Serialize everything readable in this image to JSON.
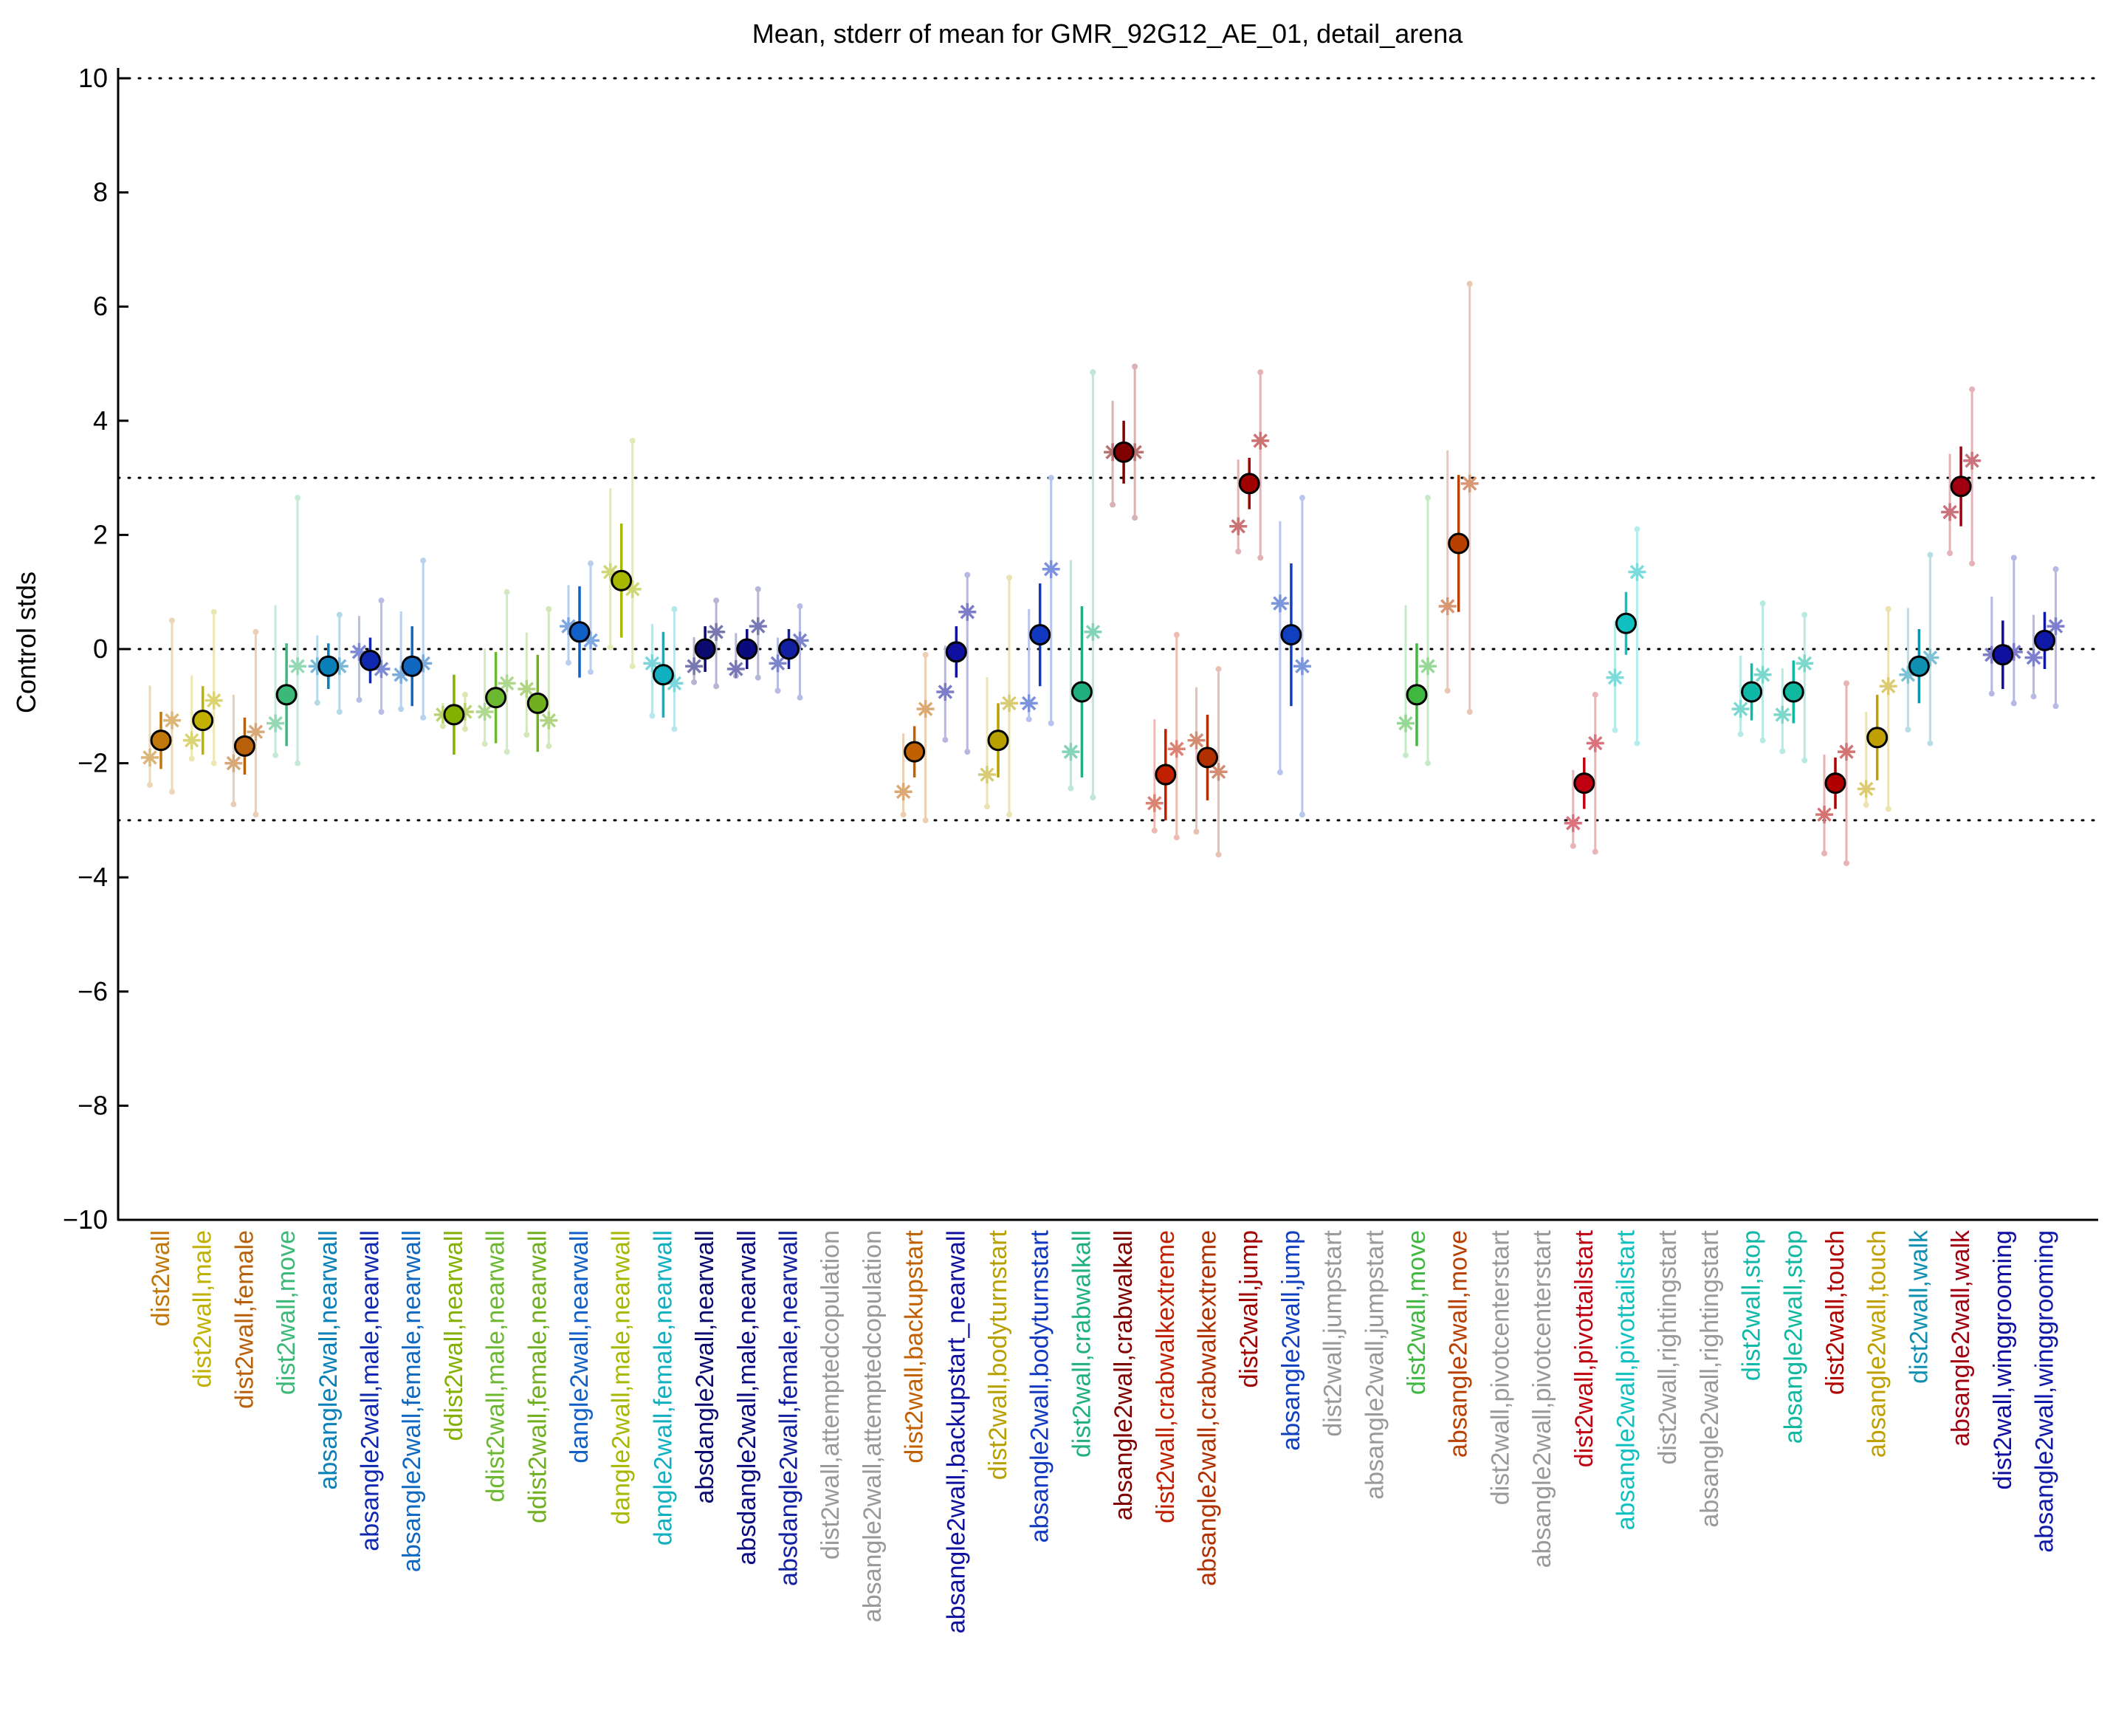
{
  "chart_data": {
    "type": "scatter",
    "title": "Mean, stderr of mean for GMR_92G12_AE_01, detail_arena",
    "xlabel": "",
    "ylabel": "Control stds",
    "ylim": [
      -10,
      10
    ],
    "yticks": [
      -10,
      -8,
      -6,
      -4,
      -2,
      0,
      2,
      4,
      6,
      8,
      10
    ],
    "reference_lines": [
      -10,
      -3,
      0,
      3,
      10
    ],
    "grid": false,
    "categories": [
      {
        "label": "dist2wall",
        "color": "#c0780a",
        "mean": -1.6,
        "err": 0.5,
        "asterisks": [
          -1.9,
          -1.25
        ],
        "sample_min": -2.5,
        "sample_max": 0.5
      },
      {
        "label": "dist2wall,male",
        "color": "#c0b000",
        "mean": -1.25,
        "err": 0.6,
        "asterisks": [
          -1.6,
          -0.9
        ],
        "sample_min": -2.0,
        "sample_max": 0.65
      },
      {
        "label": "dist2wall,female",
        "color": "#b8600a",
        "mean": -1.7,
        "err": 0.5,
        "asterisks": [
          -2.0,
          -1.45
        ],
        "sample_min": -2.9,
        "sample_max": 0.3
      },
      {
        "label": "dist2wall,move",
        "color": "#3cb878",
        "mean": -0.8,
        "err": 0.9,
        "asterisks": [
          -1.3,
          -0.3
        ],
        "sample_min": -2.0,
        "sample_max": 2.65
      },
      {
        "label": "absangle2wall,nearwall",
        "color": "#0a80b8",
        "mean": -0.3,
        "err": 0.4,
        "asterisks": [
          -0.3,
          -0.3
        ],
        "sample_min": -1.1,
        "sample_max": 0.6
      },
      {
        "label": "absangle2wall,male,nearwall",
        "color": "#1028b0",
        "mean": -0.2,
        "err": 0.4,
        "asterisks": [
          -0.05,
          -0.35
        ],
        "sample_min": -1.1,
        "sample_max": 0.85
      },
      {
        "label": "absangle2wall,female,nearwall",
        "color": "#1068c0",
        "mean": -0.3,
        "err": 0.7,
        "asterisks": [
          -0.45,
          -0.25
        ],
        "sample_min": -1.2,
        "sample_max": 1.55
      },
      {
        "label": "ddist2wall,nearwall",
        "color": "#84b000",
        "mean": -1.15,
        "err": 0.7,
        "asterisks": [
          -1.15,
          -1.1
        ],
        "sample_min": -1.4,
        "sample_max": -0.8
      },
      {
        "label": "ddist2wall,male,nearwall",
        "color": "#6cb830",
        "mean": -0.85,
        "err": 0.8,
        "asterisks": [
          -1.1,
          -0.6
        ],
        "sample_min": -1.8,
        "sample_max": 1.0
      },
      {
        "label": "ddist2wall,female,nearwall",
        "color": "#70b020",
        "mean": -0.95,
        "err": 0.85,
        "asterisks": [
          -0.7,
          -1.25
        ],
        "sample_min": -1.7,
        "sample_max": 0.7
      },
      {
        "label": "dangle2wall,nearwall",
        "color": "#1060c8",
        "mean": 0.3,
        "err": 0.8,
        "asterisks": [
          0.4,
          0.15
        ],
        "sample_min": -0.4,
        "sample_max": 1.5
      },
      {
        "label": "dangle2wall,male,nearwall",
        "color": "#a8b800",
        "mean": 1.2,
        "err": 1.0,
        "asterisks": [
          1.35,
          1.05
        ],
        "sample_min": -0.3,
        "sample_max": 3.65
      },
      {
        "label": "dangle2wall,female,nearwall",
        "color": "#10b0c0",
        "mean": -0.45,
        "err": 0.75,
        "asterisks": [
          -0.25,
          -0.6
        ],
        "sample_min": -1.4,
        "sample_max": 0.7
      },
      {
        "label": "absdangle2wall,nearwall",
        "color": "#0a0a70",
        "mean": 0.0,
        "err": 0.4,
        "asterisks": [
          -0.3,
          0.3
        ],
        "sample_min": -0.65,
        "sample_max": 0.85
      },
      {
        "label": "absdangle2wall,male,nearwall",
        "color": "#0a0a80",
        "mean": 0.0,
        "err": 0.35,
        "asterisks": [
          -0.35,
          0.4
        ],
        "sample_min": -0.5,
        "sample_max": 1.05
      },
      {
        "label": "absdangle2wall,female,nearwall",
        "color": "#1020a0",
        "mean": 0.0,
        "err": 0.35,
        "asterisks": [
          -0.25,
          0.15
        ],
        "sample_min": -0.85,
        "sample_max": 0.75
      },
      {
        "label": "dist2wall,attemptedcopulation",
        "color": "#999999",
        "mean": null
      },
      {
        "label": "absangle2wall,attemptedcopulation",
        "color": "#999999",
        "mean": null
      },
      {
        "label": "dist2wall,backupstart",
        "color": "#c06000",
        "mean": -1.8,
        "err": 0.45,
        "asterisks": [
          -2.5,
          -1.05
        ],
        "sample_min": -3.0,
        "sample_max": -0.1
      },
      {
        "label": "absangle2wall,backupstart_nearwall",
        "color": "#1010a0",
        "mean": -0.05,
        "err": 0.45,
        "asterisks": [
          -0.75,
          0.65
        ],
        "sample_min": -1.8,
        "sample_max": 1.3
      },
      {
        "label": "dist2wall,bodyturnstart",
        "color": "#b8a000",
        "mean": -1.6,
        "err": 0.65,
        "asterisks": [
          -2.2,
          -0.95
        ],
        "sample_min": -2.9,
        "sample_max": 1.25
      },
      {
        "label": "absangle2wall,bodyturnstart",
        "color": "#1038c0",
        "mean": 0.25,
        "err": 0.9,
        "asterisks": [
          -0.95,
          1.4
        ],
        "sample_min": -1.3,
        "sample_max": 3.0
      },
      {
        "label": "dist2wall,crabwalkall",
        "color": "#20b080",
        "mean": -0.75,
        "err": 1.5,
        "asterisks": [
          -1.8,
          0.3
        ],
        "sample_min": -2.6,
        "sample_max": 4.85
      },
      {
        "label": "absangle2wall,crabwalkall",
        "color": "#800000",
        "mean": 3.45,
        "err": 0.55,
        "asterisks": [
          3.45,
          3.45
        ],
        "sample_min": 2.3,
        "sample_max": 4.95
      },
      {
        "label": "dist2wall,crabwalkextreme",
        "color": "#c02000",
        "mean": -2.2,
        "err": 0.8,
        "asterisks": [
          -2.7,
          -1.75
        ],
        "sample_min": -3.3,
        "sample_max": 0.25
      },
      {
        "label": "absangle2wall,crabwalkextreme",
        "color": "#b03000",
        "mean": -1.9,
        "err": 0.75,
        "asterisks": [
          -1.6,
          -2.15
        ],
        "sample_min": -3.6,
        "sample_max": -0.35
      },
      {
        "label": "dist2wall,jump",
        "color": "#a00000",
        "mean": 2.9,
        "err": 0.45,
        "asterisks": [
          2.15,
          3.65
        ],
        "sample_min": 1.6,
        "sample_max": 4.85
      },
      {
        "label": "absangle2wall,jump",
        "color": "#1040c0",
        "mean": 0.25,
        "err": 1.25,
        "asterisks": [
          0.8,
          -0.3
        ],
        "sample_min": -2.9,
        "sample_max": 2.65
      },
      {
        "label": "dist2wall,jumpstart",
        "color": "#999999",
        "mean": null
      },
      {
        "label": "absangle2wall,jumpstart",
        "color": "#999999",
        "mean": null
      },
      {
        "label": "dist2wall,move",
        "color": "#40b840",
        "mean": -0.8,
        "err": 0.9,
        "asterisks": [
          -1.3,
          -0.3
        ],
        "sample_min": -2.0,
        "sample_max": 2.65
      },
      {
        "label": "absangle2wall,move",
        "color": "#b84000",
        "mean": 1.85,
        "err": 1.2,
        "asterisks": [
          0.75,
          2.9
        ],
        "sample_min": -1.1,
        "sample_max": 6.4
      },
      {
        "label": "dist2wall,pivotcenterstart",
        "color": "#999999",
        "mean": null
      },
      {
        "label": "absangle2wall,pivotcenterstart",
        "color": "#999999",
        "mean": null
      },
      {
        "label": "dist2wall,pivottailstart",
        "color": "#c00010",
        "mean": -2.35,
        "err": 0.45,
        "asterisks": [
          -3.05,
          -1.65
        ],
        "sample_min": -3.55,
        "sample_max": -0.8
      },
      {
        "label": "absangle2wall,pivottailstart",
        "color": "#10c0c0",
        "mean": 0.45,
        "err": 0.55,
        "asterisks": [
          -0.5,
          1.35
        ],
        "sample_min": -1.65,
        "sample_max": 2.1
      },
      {
        "label": "dist2wall,rightingstart",
        "color": "#999999",
        "mean": null
      },
      {
        "label": "absangle2wall,rightingstart",
        "color": "#999999",
        "mean": null
      },
      {
        "label": "dist2wall,stop",
        "color": "#10b8a8",
        "mean": -0.75,
        "err": 0.5,
        "asterisks": [
          -1.05,
          -0.45
        ],
        "sample_min": -1.6,
        "sample_max": 0.8
      },
      {
        "label": "absangle2wall,stop",
        "color": "#10b8a0",
        "mean": -0.75,
        "err": 0.55,
        "asterisks": [
          -1.15,
          -0.25
        ],
        "sample_min": -1.95,
        "sample_max": 0.6
      },
      {
        "label": "dist2wall,touch",
        "color": "#b00000",
        "mean": -2.35,
        "err": 0.45,
        "asterisks": [
          -2.9,
          -1.8
        ],
        "sample_min": -3.75,
        "sample_max": -0.6
      },
      {
        "label": "absangle2wall,touch",
        "color": "#c0a000",
        "mean": -1.55,
        "err": 0.75,
        "asterisks": [
          -2.45,
          -0.65
        ],
        "sample_min": -2.8,
        "sample_max": 0.7
      },
      {
        "label": "dist2wall,walk",
        "color": "#1090b0",
        "mean": -0.3,
        "err": 0.65,
        "asterisks": [
          -0.45,
          -0.15
        ],
        "sample_min": -1.65,
        "sample_max": 1.65
      },
      {
        "label": "absangle2wall,walk",
        "color": "#a00010",
        "mean": 2.85,
        "err": 0.7,
        "asterisks": [
          2.4,
          3.3
        ],
        "sample_min": 1.5,
        "sample_max": 4.55
      },
      {
        "label": "dist2wall,winggrooming",
        "color": "#1010a0",
        "mean": -0.1,
        "err": 0.6,
        "asterisks": [
          -0.1,
          -0.05
        ],
        "sample_min": -0.95,
        "sample_max": 1.6
      },
      {
        "label": "absangle2wall,winggrooming",
        "color": "#1018a8",
        "mean": 0.15,
        "err": 0.5,
        "asterisks": [
          -0.15,
          0.4
        ],
        "sample_min": -1.0,
        "sample_max": 1.4
      }
    ]
  }
}
